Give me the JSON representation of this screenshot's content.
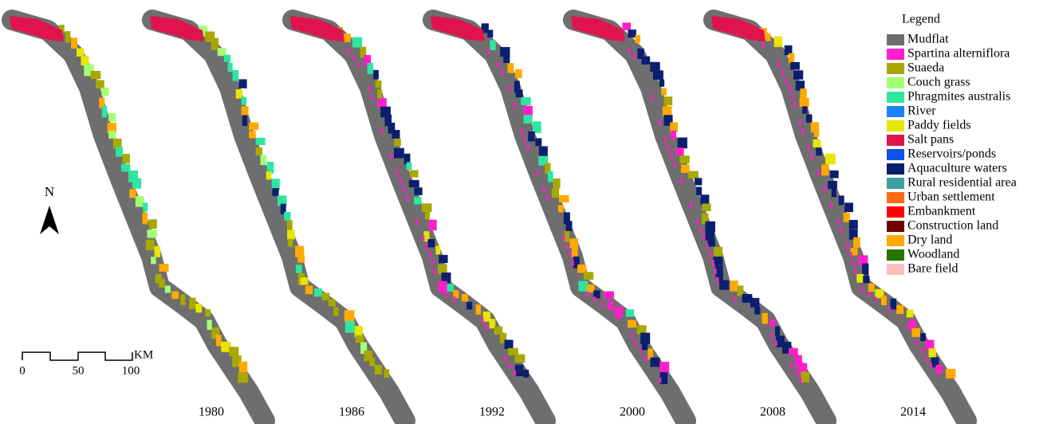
{
  "legend": {
    "title": "Legend",
    "items": [
      {
        "label": "Mudflat",
        "color": "#6e6e6e"
      },
      {
        "label": "Spartina alterniflora",
        "color": "#ff1fc8"
      },
      {
        "label": "Suaeda",
        "color": "#a8a800"
      },
      {
        "label": "Couch grass",
        "color": "#a3ff73"
      },
      {
        "label": "Phragmites australis",
        "color": "#2ee6a0"
      },
      {
        "label": "River",
        "color": "#1e7fff"
      },
      {
        "label": "Paddy fields",
        "color": "#e6e600"
      },
      {
        "label": "Salt pans",
        "color": "#e0144c"
      },
      {
        "label": "Reservoirs/ponds",
        "color": "#1452e6"
      },
      {
        "label": "Aquaculture waters",
        "color": "#0c1f6e"
      },
      {
        "label": "Rural residential area",
        "color": "#3ca0a0"
      },
      {
        "label": "Urban settlement",
        "color": "#ff6a14"
      },
      {
        "label": "Embankment",
        "color": "#ff0000"
      },
      {
        "label": "Construction land",
        "color": "#6e0000"
      },
      {
        "label": "Dry land",
        "color": "#ffaa00"
      },
      {
        "label": "Woodland",
        "color": "#267300"
      },
      {
        "label": "Bare field",
        "color": "#ffbebe"
      }
    ]
  },
  "panels": [
    {
      "year": "1980"
    },
    {
      "year": "1986"
    },
    {
      "year": "1992"
    },
    {
      "year": "2000"
    },
    {
      "year": "2008"
    },
    {
      "year": "2014"
    }
  ],
  "north_arrow": {
    "label": "N"
  },
  "scale_bar": {
    "ticks": [
      "0",
      "50",
      "100"
    ],
    "unit": "KM"
  }
}
